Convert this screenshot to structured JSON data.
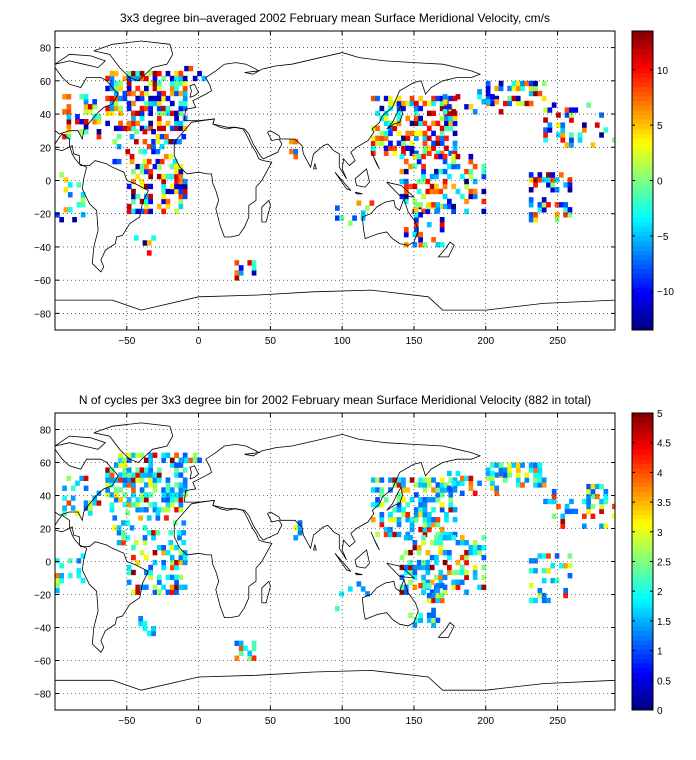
{
  "chart_data": [
    {
      "type": "heatmap",
      "title": "3x3 degree bin–averaged 2002 February mean Surface Meridional Velocity, cm/s",
      "xlabel": "",
      "ylabel": "",
      "xlim": [
        -100,
        290
      ],
      "ylim": [
        -90,
        90
      ],
      "xticks": [
        -50,
        0,
        50,
        100,
        150,
        200,
        250
      ],
      "yticks": [
        80,
        60,
        40,
        20,
        0,
        -20,
        -40,
        -60,
        -80
      ],
      "grid": true,
      "colorbar": {
        "min": -13.5,
        "max": 13.5,
        "ticks": [
          10,
          5,
          0,
          -5,
          -10
        ],
        "colormap": "jet"
      },
      "seed": 2002
    },
    {
      "type": "heatmap",
      "title": "N of cycles per 3x3 degree bin for 2002 February mean Surface Meridional Velocity (882 in total)",
      "xlabel": "",
      "ylabel": "",
      "xlim": [
        -100,
        290
      ],
      "ylim": [
        -90,
        90
      ],
      "xticks": [
        -50,
        0,
        50,
        100,
        150,
        200,
        250
      ],
      "yticks": [
        80,
        60,
        40,
        20,
        0,
        -20,
        -40,
        -60,
        -80
      ],
      "grid": true,
      "colorbar": {
        "min": 0,
        "max": 5,
        "ticks": [
          5,
          4.5,
          4,
          3.5,
          3,
          2.5,
          2,
          1.5,
          1,
          0.5,
          0
        ],
        "colormap": "jet"
      },
      "seed": 882
    }
  ]
}
